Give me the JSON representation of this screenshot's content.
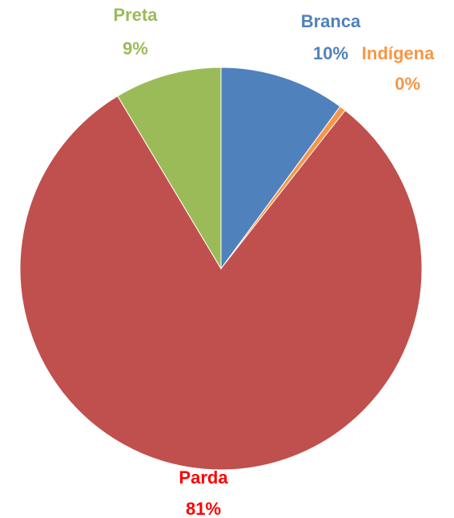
{
  "chart_data": {
    "type": "pie",
    "categories": [
      "Branca",
      "Indígena",
      "Parda",
      "Preta"
    ],
    "values": [
      10.1,
      0.5,
      80.8,
      8.6
    ],
    "value_labels": [
      "10%",
      "0%",
      "81%",
      "9%"
    ],
    "colors": [
      "#4f81bd",
      "#f79646",
      "#c0504d",
      "#9bbb59"
    ],
    "label_colors": [
      "#4f81bd",
      "#f79646",
      "#ff0000",
      "#9bbb59"
    ]
  }
}
